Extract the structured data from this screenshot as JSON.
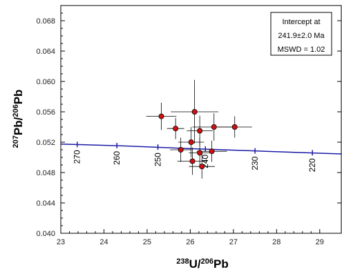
{
  "colors": {
    "concordia": "#1a1aa6",
    "point_fill": "#d01010",
    "point_stroke": "#000000",
    "error_bar": "#000000",
    "axis": "#000000"
  },
  "chart_data": {
    "type": "scatter",
    "xlabel": {
      "main": "U/",
      "sup1": "238",
      "sup2": "206",
      "end": "Pb"
    },
    "ylabel": {
      "sup1": "207",
      "mid": "Pb/",
      "sup2": "206",
      "end": "Pb"
    },
    "xlim": [
      23,
      29.5
    ],
    "ylim": [
      0.04,
      0.07
    ],
    "x_ticks": [
      23,
      24,
      25,
      26,
      27,
      28,
      29
    ],
    "x_tick_labels": [
      "23",
      "24",
      "25",
      "26",
      "27",
      "28",
      "29"
    ],
    "y_ticks": [
      0.04,
      0.044,
      0.048,
      0.052,
      0.056,
      0.06,
      0.064,
      0.068
    ],
    "y_tick_labels": [
      "0.040",
      "0.044",
      "0.048",
      "0.052",
      "0.056",
      "0.060",
      "0.064",
      "0.068"
    ],
    "grid": false,
    "legend_box": {
      "position": "top-right",
      "lines": [
        "Intercept at",
        "241.9±2.0 Ma",
        "MSWD = 1.02"
      ]
    },
    "concordia": {
      "points": [
        {
          "x": 23.0,
          "y": 0.05175
        },
        {
          "x": 24.5,
          "y": 0.0515
        },
        {
          "x": 26.0,
          "y": 0.05115
        },
        {
          "x": 27.5,
          "y": 0.05085
        },
        {
          "x": 29.0,
          "y": 0.05055
        },
        {
          "x": 29.5,
          "y": 0.05045
        }
      ],
      "age_marks": [
        {
          "age": "270",
          "x": 23.38,
          "y": 0.0517
        },
        {
          "age": "260",
          "x": 24.3,
          "y": 0.05155
        },
        {
          "age": "250",
          "x": 25.25,
          "y": 0.05135
        },
        {
          "age": "240",
          "x": 26.35,
          "y": 0.0511
        },
        {
          "age": "230",
          "x": 27.5,
          "y": 0.05085
        },
        {
          "age": "220",
          "x": 28.83,
          "y": 0.0506
        }
      ]
    },
    "points": [
      {
        "x": 25.33,
        "y": 0.0554,
        "xerr": 0.35,
        "yerr": 0.0018
      },
      {
        "x": 25.66,
        "y": 0.0538,
        "xerr": 0.2,
        "yerr": 0.0014
      },
      {
        "x": 26.1,
        "y": 0.056,
        "xerr": 0.55,
        "yerr": 0.0042
      },
      {
        "x": 26.22,
        "y": 0.0535,
        "xerr": 0.3,
        "yerr": 0.002
      },
      {
        "x": 26.55,
        "y": 0.054,
        "xerr": 0.5,
        "yerr": 0.0018
      },
      {
        "x": 27.03,
        "y": 0.054,
        "xerr": 0.4,
        "yerr": 0.0014
      },
      {
        "x": 26.02,
        "y": 0.052,
        "xerr": 0.3,
        "yerr": 0.002
      },
      {
        "x": 25.78,
        "y": 0.051,
        "xerr": 0.25,
        "yerr": 0.0016
      },
      {
        "x": 26.22,
        "y": 0.0506,
        "xerr": 0.25,
        "yerr": 0.002
      },
      {
        "x": 26.5,
        "y": 0.0508,
        "xerr": 0.35,
        "yerr": 0.0014
      },
      {
        "x": 26.05,
        "y": 0.0495,
        "xerr": 0.35,
        "yerr": 0.0018
      },
      {
        "x": 26.27,
        "y": 0.0488,
        "xerr": 0.3,
        "yerr": 0.0016
      }
    ]
  }
}
